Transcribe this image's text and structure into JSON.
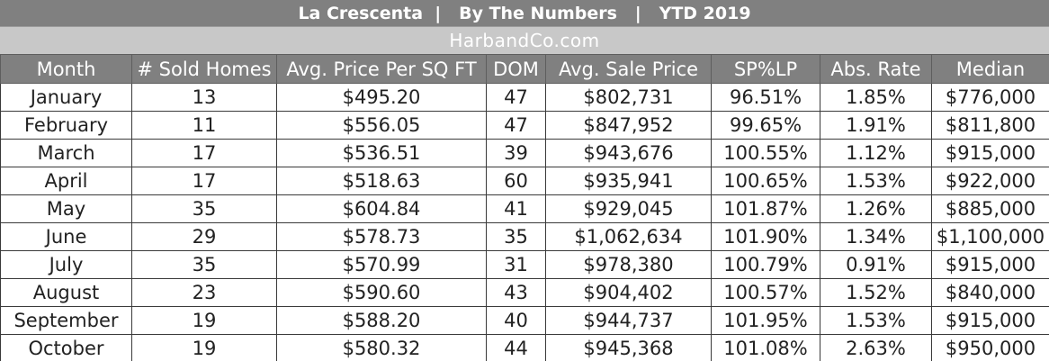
{
  "header": {
    "title": "La Crescenta  |   By The Numbers   |   YTD 2019",
    "subtitle": "HarbandCo.com"
  },
  "table": {
    "columns": [
      "Month",
      "# Sold Homes",
      "Avg. Price Per SQ FT",
      "DOM",
      "Avg. Sale Price",
      "SP%LP",
      "Abs. Rate",
      "Median"
    ],
    "rows": [
      [
        "January",
        "13",
        "$495.20",
        "47",
        "$802,731",
        "96.51%",
        "1.85%",
        "$776,000"
      ],
      [
        "February",
        "11",
        "$556.05",
        "47",
        "$847,952",
        "99.65%",
        "1.91%",
        "$811,800"
      ],
      [
        "March",
        "17",
        "$536.51",
        "39",
        "$943,676",
        "100.55%",
        "1.12%",
        "$915,000"
      ],
      [
        "April",
        "17",
        "$518.63",
        "60",
        "$935,941",
        "100.65%",
        "1.53%",
        "$922,000"
      ],
      [
        "May",
        "35",
        "$604.84",
        "41",
        "$929,045",
        "101.87%",
        "1.26%",
        "$885,000"
      ],
      [
        "June",
        "29",
        "$578.73",
        "35",
        "$1,062,634",
        "101.90%",
        "1.34%",
        "$1,100,000"
      ],
      [
        "July",
        "35",
        "$570.99",
        "31",
        "$978,380",
        "100.79%",
        "0.91%",
        "$915,000"
      ],
      [
        "August",
        "23",
        "$590.60",
        "43",
        "$904,402",
        "100.57%",
        "1.52%",
        "$840,000"
      ],
      [
        "September",
        "19",
        "$588.20",
        "40",
        "$944,737",
        "101.95%",
        "1.53%",
        "$915,000"
      ],
      [
        "October",
        "19",
        "$580.32",
        "44",
        "$945,368",
        "101.08%",
        "2.63%",
        "$950,000"
      ]
    ]
  },
  "colors": {
    "header_bg": "#808080",
    "subtitle_bg": "#c8c8c8",
    "header_text": "#ffffff",
    "cell_text": "#222222"
  }
}
